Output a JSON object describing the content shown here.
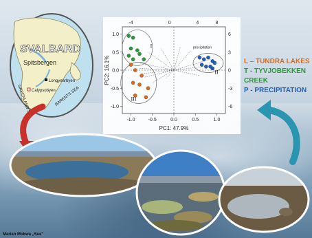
{
  "map": {
    "region_label": "SVALBARD",
    "island_label": "Spitsbergen",
    "town_1": "Longyearbyen",
    "town_2": "Calypsobyen",
    "sea_1": "GREENLAND SEA",
    "sea_2": "BARENTS SEA"
  },
  "legend": {
    "l": "L – TUNDRA LAKES",
    "t": "T - TYVJOBEKKEN",
    "t2": "CREEK",
    "p": "P - PRECIPITATION"
  },
  "credit": "Marian Mokwa „See\"",
  "colors": {
    "tundra": "#e06b1b",
    "creek": "#2a9a3a",
    "precip": "#1f62b7",
    "arrow_red": "#c8302a",
    "arrow_teal": "#2a95b0"
  },
  "chart_data": {
    "type": "scatter",
    "title": "",
    "xlabel": "PC1: 47.9%",
    "ylabel": "PC2: 16.1%",
    "xlim": [
      -1.2,
      1.2
    ],
    "ylim": [
      -1.2,
      1.2
    ],
    "x_ticks": [
      "-1.0",
      "-0.5",
      "0.0",
      "0.5",
      "1.0"
    ],
    "y_ticks": [
      "1.0",
      "0.5",
      "0.0",
      "-0.5",
      "-1.0"
    ],
    "top_ticks": [
      "-4",
      "0",
      "4",
      "8"
    ],
    "right_ticks": [
      "6",
      "3",
      "0",
      "-3",
      "-6"
    ],
    "group_labels": [
      "I",
      "II",
      "III"
    ],
    "variable_label": "precipitation",
    "series": [
      {
        "points": [
          [
            -1.05,
            0.95
          ],
          [
            -0.95,
            0.9
          ],
          [
            -1.0,
            0.6
          ],
          [
            -0.85,
            0.55
          ],
          [
            -1.05,
            0.4
          ],
          [
            -0.8,
            0.45
          ],
          [
            -0.7,
            0.3
          ],
          [
            -0.95,
            0.3
          ]
        ]
      },
      {
        "points": [
          [
            -1.0,
            0.15
          ],
          [
            -0.9,
            0.0
          ],
          [
            -0.75,
            -0.15
          ],
          [
            -0.95,
            -0.35
          ],
          [
            -0.8,
            -0.4
          ],
          [
            -0.6,
            -0.5
          ],
          [
            -0.9,
            -0.7
          ],
          [
            -0.65,
            -0.75
          ]
        ]
      },
      {
        "points": [
          [
            0.6,
            0.35
          ],
          [
            0.7,
            0.3
          ],
          [
            0.8,
            0.35
          ],
          [
            0.9,
            0.25
          ],
          [
            0.95,
            0.2
          ],
          [
            0.65,
            0.15
          ],
          [
            0.75,
            0.1
          ],
          [
            0.85,
            0.1
          ],
          [
            0.9,
            0.05
          ]
        ]
      }
    ]
  }
}
